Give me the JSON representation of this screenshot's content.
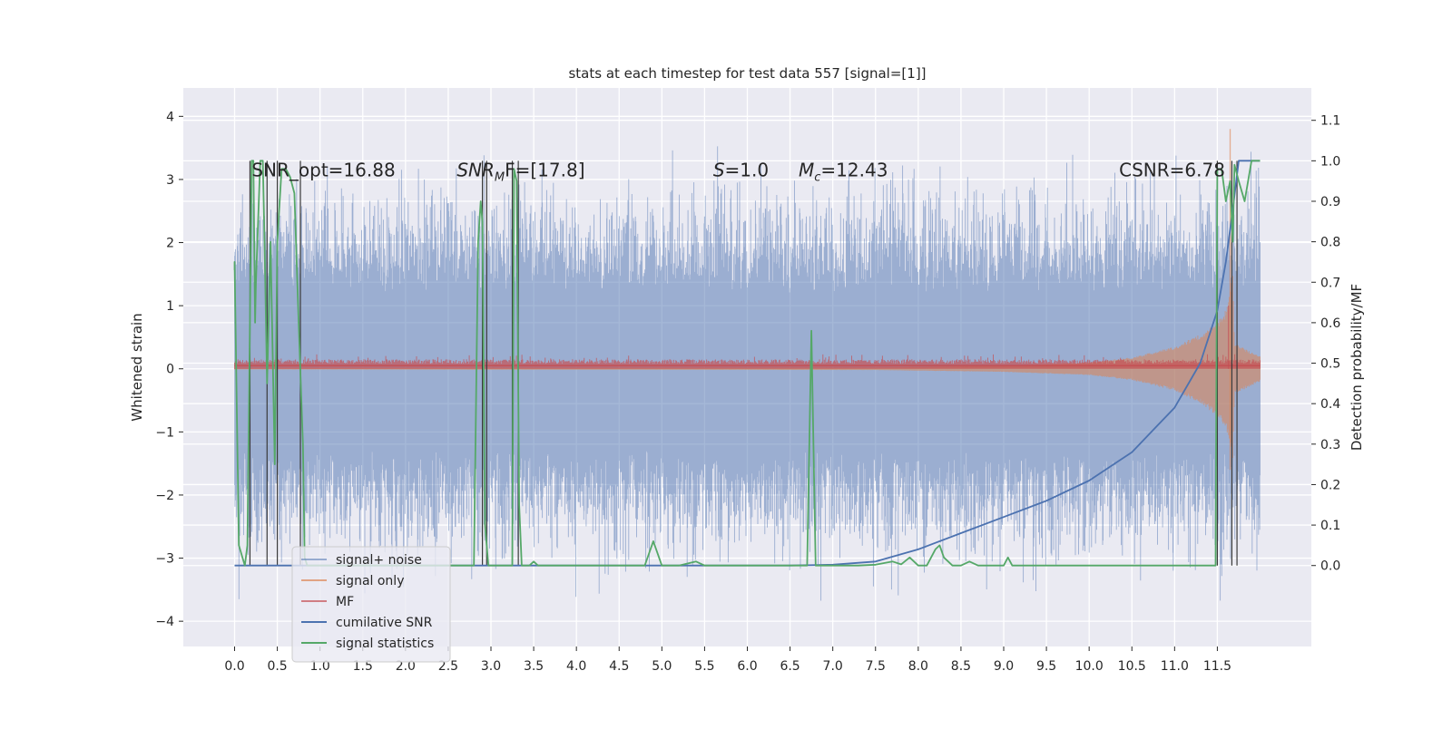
{
  "chart_data": {
    "type": "line",
    "title": "stats at each timestep for test data 557 [signal=[1]]",
    "xlabel": "",
    "ylabel": "Whitened strain",
    "ylabel_right": "Detection probability/MF",
    "xlim": [
      -0.6,
      12.6
    ],
    "ylim": [
      -4.4,
      4.45
    ],
    "ylim_right": [
      -0.2,
      1.18
    ],
    "x_ticks": [
      0.0,
      0.5,
      1.0,
      1.5,
      2.0,
      2.5,
      3.0,
      3.5,
      4.0,
      4.5,
      5.0,
      5.5,
      6.0,
      6.5,
      7.0,
      7.5,
      8.0,
      8.5,
      9.0,
      9.5,
      10.0,
      10.5,
      11.0,
      11.5
    ],
    "x_tick_labels": [
      "0.0",
      "0.5",
      "1.0",
      "1.5",
      "2.0",
      "2.5",
      "3.0",
      "3.5",
      "4.0",
      "4.5",
      "5.0",
      "5.5",
      "6.0",
      "6.5",
      "7.0",
      "7.5",
      "8.0",
      "8.5",
      "9.0",
      "9.5",
      "10.0",
      "10.5",
      "11.0",
      "11.5"
    ],
    "y_ticks": [
      4,
      3,
      2,
      1,
      0,
      -1,
      -2,
      -3,
      -4
    ],
    "y_tick_labels": [
      "4",
      "3",
      "2",
      "1",
      "0",
      "−1",
      "−2",
      "−3",
      "−4"
    ],
    "y_right_ticks": [
      1.1,
      1.0,
      0.9,
      0.8,
      0.7,
      0.6,
      0.5,
      0.4,
      0.3,
      0.2,
      0.1,
      0.0
    ],
    "y_right_tick_labels": [
      "1.1",
      "1.0",
      "0.9",
      "0.8",
      "0.7",
      "0.6",
      "0.5",
      "0.4",
      "0.3",
      "0.2",
      "0.1",
      "0.0"
    ],
    "grid": true,
    "legend_position": "lower-left",
    "legend": [
      {
        "label": "signal+ noise",
        "color": "#4c72b0"
      },
      {
        "label": "signal only",
        "color": "#dd8452"
      },
      {
        "label": "MF",
        "color": "#c44e52"
      },
      {
        "label": "cumilative SNR",
        "color": "#4c72b0"
      },
      {
        "label": "signal statistics",
        "color": "#55a868"
      }
    ],
    "annotations": {
      "snr_opt": "SNR_opt=16.88",
      "snr_mf_base": "SNR",
      "snr_mf_sub": "M",
      "snr_mf_rest": "F=[17.8]",
      "s_sym": "S",
      "s_val": "=1.0",
      "mc_sym": "M",
      "mc_sub": "c",
      "mc_val": "=12.43",
      "csnr": "CSNR=6.78"
    },
    "series": [
      {
        "name": "cumilative SNR",
        "axis": "right",
        "color": "#4c72b0",
        "x": [
          0.0,
          6.5,
          7.0,
          7.5,
          8.0,
          8.5,
          9.0,
          9.5,
          10.0,
          10.5,
          11.0,
          11.3,
          11.5,
          11.6,
          11.68,
          11.75,
          12.0
        ],
        "y": [
          0.0,
          0.0,
          0.002,
          0.01,
          0.04,
          0.08,
          0.12,
          0.16,
          0.21,
          0.28,
          0.39,
          0.5,
          0.63,
          0.75,
          0.88,
          1.0,
          1.0
        ]
      },
      {
        "name": "signal statistics",
        "axis": "right",
        "color": "#55a868",
        "x": [
          0.0,
          0.0,
          0.05,
          0.12,
          0.15,
          0.18,
          0.2,
          0.22,
          0.24,
          0.25,
          0.3,
          0.33,
          0.35,
          0.38,
          0.42,
          0.47,
          0.5,
          0.55,
          0.6,
          0.65,
          0.7,
          0.75,
          0.8,
          0.82,
          0.85,
          0.9,
          2.8,
          2.85,
          2.88,
          2.9,
          2.93,
          2.97,
          3.0,
          3.05,
          3.25,
          3.27,
          3.3,
          3.33,
          3.36,
          3.4,
          3.45,
          3.5,
          3.55,
          4.0,
          4.5,
          4.8,
          4.9,
          5.0,
          5.2,
          5.4,
          5.5,
          5.6,
          6.0,
          6.5,
          6.7,
          6.75,
          6.8,
          6.85,
          7.0,
          7.3,
          7.5,
          7.7,
          7.8,
          7.9,
          8.0,
          8.1,
          8.2,
          8.25,
          8.3,
          8.4,
          8.5,
          8.6,
          8.7,
          8.8,
          9.0,
          9.05,
          9.1,
          9.3,
          9.5,
          10.0,
          10.5,
          11.0,
          11.48,
          11.5,
          11.55,
          11.6,
          11.65,
          11.68,
          11.7,
          11.75,
          11.82,
          11.9,
          12.0
        ],
        "y": [
          0.73,
          0.75,
          0.05,
          0.0,
          0.05,
          0.6,
          1.0,
          1.0,
          0.6,
          0.7,
          1.0,
          1.0,
          0.8,
          0.45,
          0.8,
          0.25,
          0.8,
          0.98,
          0.98,
          0.96,
          0.92,
          0.6,
          0.3,
          0.02,
          0.0,
          0.0,
          0.0,
          0.8,
          0.9,
          0.85,
          0.1,
          0.0,
          0.0,
          0.0,
          0.0,
          0.98,
          0.95,
          0.15,
          0.0,
          0.0,
          0.0,
          0.01,
          0.0,
          0.0,
          0.0,
          0.0,
          0.06,
          0.0,
          0.0,
          0.01,
          0.0,
          0.0,
          0.0,
          0.0,
          0.0,
          0.58,
          0.0,
          0.0,
          0.0,
          0.0,
          0.002,
          0.01,
          0.003,
          0.02,
          0.0,
          0.0,
          0.04,
          0.05,
          0.02,
          0.0,
          0.0,
          0.01,
          0.0,
          0.0,
          0.0,
          0.02,
          0.0,
          0.0,
          0.0,
          0.0,
          0.0,
          0.0,
          0.0,
          0.98,
          0.98,
          0.9,
          0.95,
          0.8,
          0.99,
          0.95,
          0.9,
          1.0,
          1.0
        ]
      },
      {
        "name": "signal only",
        "axis": "left",
        "color": "#dd8452",
        "envelope": [
          [
            0.0,
            0.01
          ],
          [
            7.5,
            0.02
          ],
          [
            9.0,
            0.05
          ],
          [
            10.0,
            0.1
          ],
          [
            10.5,
            0.18
          ],
          [
            11.0,
            0.35
          ],
          [
            11.3,
            0.55
          ],
          [
            11.5,
            0.75
          ],
          [
            11.6,
            0.95
          ],
          [
            11.65,
            1.2
          ],
          [
            11.68,
            1.6
          ],
          [
            11.7,
            0.4
          ],
          [
            12.0,
            0.2
          ]
        ],
        "spike": {
          "x": 11.65,
          "y": 3.8
        }
      }
    ],
    "detection_markers_x": [
      0.18,
      0.38,
      0.5,
      0.77,
      2.9,
      2.95,
      3.25,
      3.32,
      11.5,
      11.67,
      11.73
    ]
  }
}
